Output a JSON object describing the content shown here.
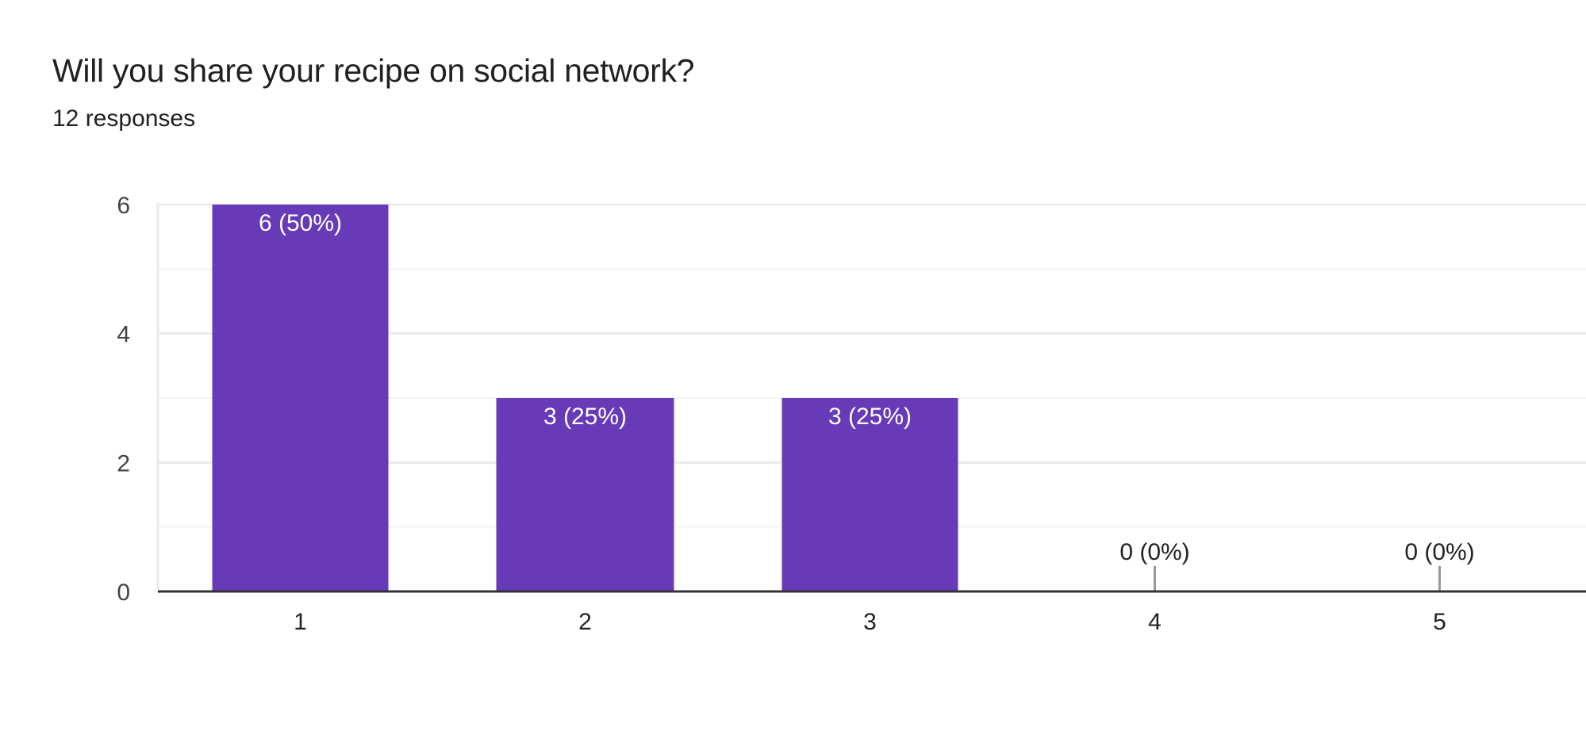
{
  "question": {
    "title": "Will you share your recipe on social network?",
    "responses": "12 responses"
  },
  "colors": {
    "bar": "#673ab7",
    "grid": "#ebebeb",
    "minor_grid": "#f3f3f3",
    "axis": "#333333",
    "zero_stub": "#999999"
  },
  "chart_data": {
    "type": "bar",
    "categories": [
      "1",
      "2",
      "3",
      "4",
      "5"
    ],
    "values": [
      6,
      3,
      3,
      0,
      0
    ],
    "labels": [
      "6 (50%)",
      "3 (25%)",
      "3 (25%)",
      "0 (0%)",
      "0 (0%)"
    ],
    "yticks": [
      0,
      2,
      4,
      6
    ],
    "ylim": [
      0,
      6
    ],
    "grid": true,
    "legend": "none"
  }
}
